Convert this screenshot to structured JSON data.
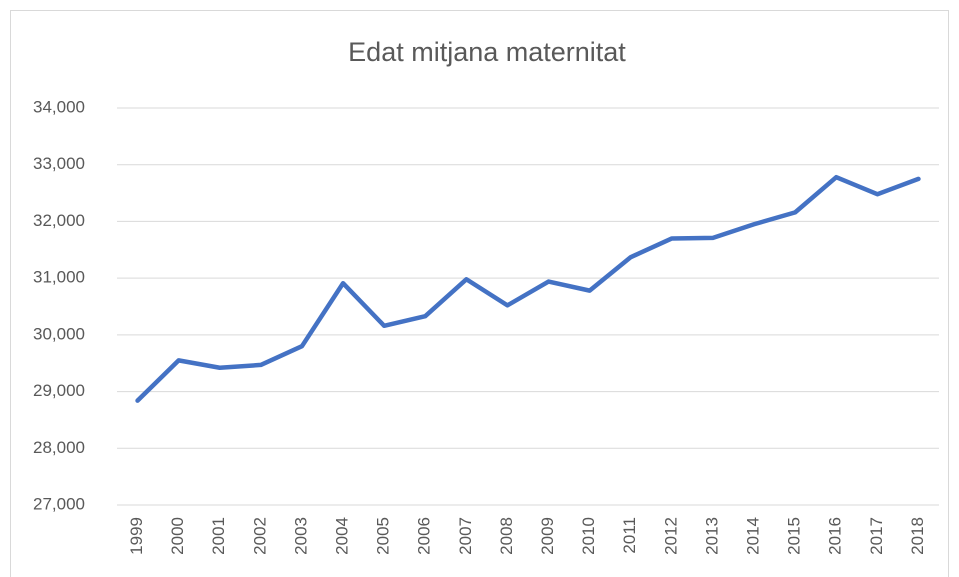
{
  "chart_data": {
    "type": "line",
    "title": "Edat mitjana maternitat",
    "categories": [
      "1999",
      "2000",
      "2001",
      "2002",
      "2003",
      "2004",
      "2005",
      "2006",
      "2007",
      "2008",
      "2009",
      "2010",
      "2011",
      "2012",
      "2013",
      "2014",
      "2015",
      "2016",
      "2017",
      "2018"
    ],
    "series": [
      {
        "color": "#4472c4",
        "values": [
          28.84,
          29.55,
          29.42,
          29.47,
          29.8,
          30.91,
          30.16,
          30.33,
          30.98,
          30.52,
          30.94,
          30.78,
          31.37,
          31.7,
          31.71,
          31.95,
          32.16,
          32.78,
          32.48,
          32.75
        ]
      }
    ],
    "ylim": [
      27,
      34
    ],
    "yticks": [
      {
        "value": 27,
        "label": "27,000"
      },
      {
        "value": 28,
        "label": "28,000"
      },
      {
        "value": 29,
        "label": "29,000"
      },
      {
        "value": 30,
        "label": "30,000"
      },
      {
        "value": 31,
        "label": "31,000"
      },
      {
        "value": 32,
        "label": "32,000"
      },
      {
        "value": 33,
        "label": "33,000"
      },
      {
        "value": 34,
        "label": "34,000"
      }
    ],
    "grid": true
  }
}
